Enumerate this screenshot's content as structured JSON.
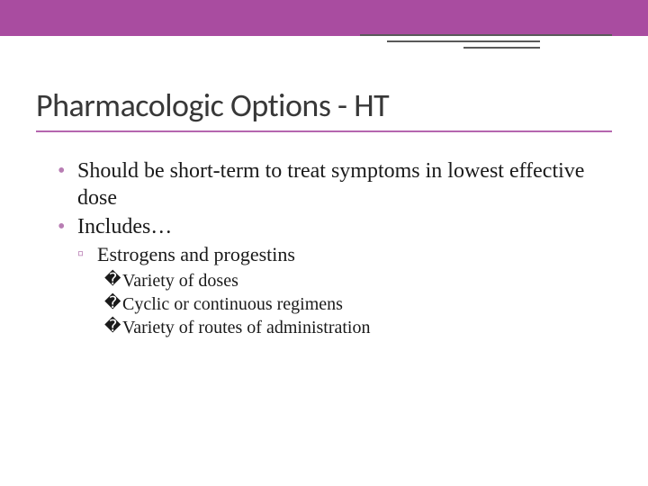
{
  "colors": {
    "header_bar": "#a94ca0",
    "accent_line": "#5a5a5a",
    "title_text": "#383838",
    "title_underline": "#b566af",
    "bullet_marker": "#b87db3",
    "body_text": "#1a1a1a",
    "background": "#ffffff"
  },
  "typography": {
    "title_font": "Segoe UI / Calibri",
    "title_size_pt": 28,
    "body_font": "Georgia / Times",
    "l1_size_pt": 18,
    "l2_size_pt": 17,
    "l3_size_pt": 15
  },
  "slide": {
    "title": "Pharmacologic Options - HT",
    "bullets_l1": [
      "Should be short-term to treat symptoms in lowest effective dose",
      "Includes…"
    ],
    "bullets_l2": [
      "Estrogens and progestins"
    ],
    "bullets_l3": [
      "Variety of doses",
      "Cyclic or continuous regimens",
      "Variety of routes of administration"
    ]
  }
}
